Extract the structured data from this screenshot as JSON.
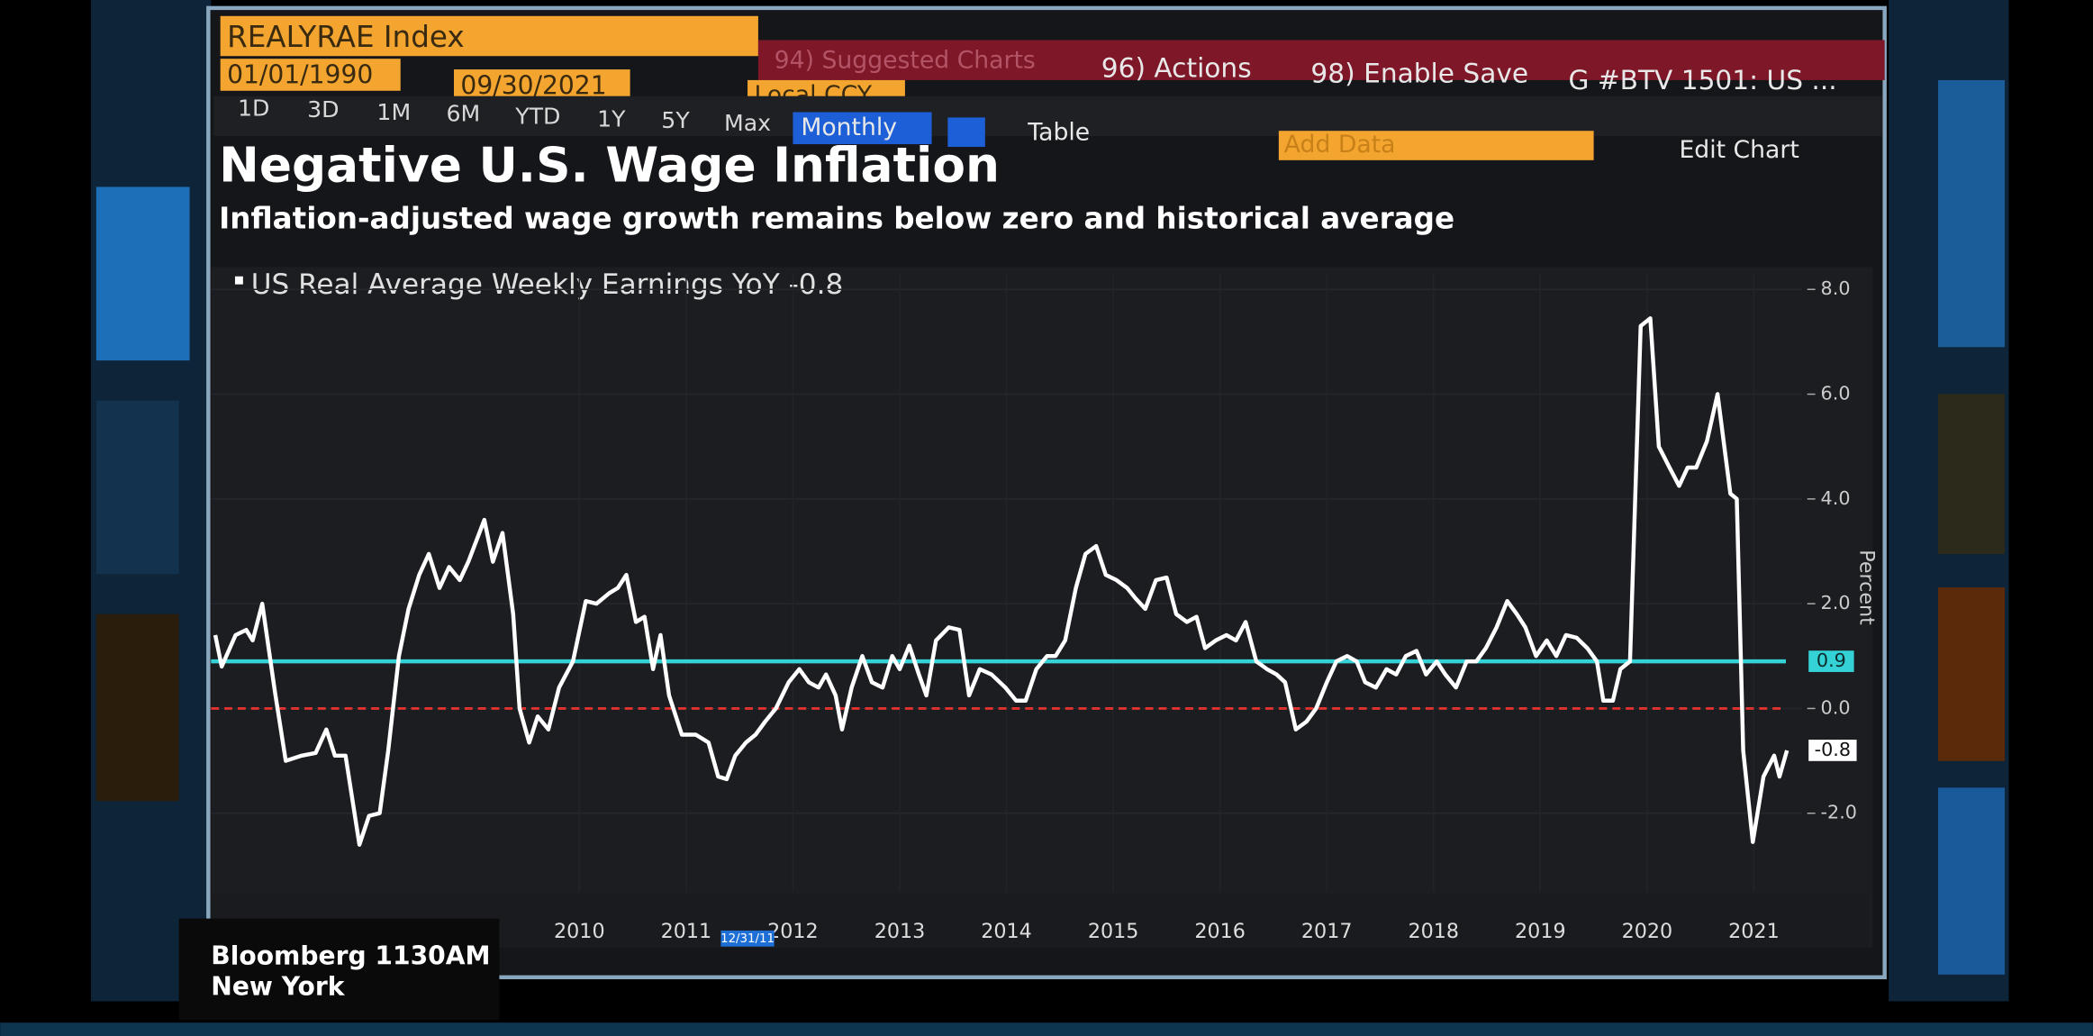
{
  "ui": {
    "security": "REALYRAE Index",
    "start_date": "01/01/1990",
    "end_date": "09/30/2021",
    "currency": "Local CCY",
    "menu": [
      "94) Suggested Charts",
      "96) Actions",
      "98) Enable Save",
      "G #BTV 1501: US ..."
    ],
    "periods": [
      "1D",
      "3D",
      "1M",
      "6M",
      "YTD",
      "1Y",
      "5Y",
      "Max"
    ],
    "frequency": "Monthly",
    "table_button": "Table",
    "add_data": "Add Data",
    "edit_chart": "Edit Chart",
    "crosshair_date": "12/31/11",
    "broadcast": {
      "brand": "Bloomberg 1130AM",
      "city": "New York"
    }
  },
  "chart_data": {
    "type": "line",
    "title": "Negative U.S. Wage Inflation",
    "subtitle": "Inflation-adjusted wage growth remains below zero and historical average",
    "y_label": "Percent",
    "x": [
      2007.09,
      2007.15,
      2007.28,
      2007.38,
      2007.44,
      2007.53,
      2007.65,
      2007.75,
      2007.9,
      2008.03,
      2008.13,
      2008.21,
      2008.31,
      2008.44,
      2008.53,
      2008.63,
      2008.71,
      2008.81,
      2008.9,
      2009.0,
      2009.09,
      2009.19,
      2009.28,
      2009.38,
      2009.46,
      2009.61,
      2009.69,
      2009.78,
      2009.88,
      2009.94,
      2010.03,
      2010.11,
      2010.21,
      2010.31,
      2010.44,
      2010.56,
      2010.66,
      2010.78,
      2010.86,
      2010.94,
      2011.03,
      2011.11,
      2011.19,
      2011.26,
      2011.34,
      2011.46,
      2011.59,
      2011.71,
      2011.8,
      2011.88,
      2011.96,
      2012.06,
      2012.15,
      2012.24,
      2012.34,
      2012.46,
      2012.56,
      2012.65,
      2012.74,
      2012.81,
      2012.9,
      2012.96,
      2013.05,
      2013.15,
      2013.24,
      2013.34,
      2013.43,
      2013.5,
      2013.59,
      2013.68,
      2013.75,
      2013.84,
      2013.96,
      2014.06,
      2014.15,
      2014.25,
      2014.36,
      2014.49,
      2014.59,
      2014.68,
      2014.78,
      2014.88,
      2014.96,
      2015.05,
      2015.15,
      2015.24,
      2015.34,
      2015.43,
      2015.53,
      2015.63,
      2015.71,
      2015.8,
      2015.9,
      2016.0,
      2016.09,
      2016.19,
      2016.28,
      2016.36,
      2016.46,
      2016.56,
      2016.65,
      2016.74,
      2016.84,
      2016.94,
      2017.03,
      2017.11,
      2017.21,
      2017.31,
      2017.4,
      2017.5,
      2017.59,
      2017.69,
      2017.78,
      2017.86,
      2017.96,
      2018.06,
      2018.15,
      2018.24,
      2018.34,
      2018.43,
      2018.53,
      2018.61,
      2018.71,
      2018.81,
      2018.9,
      2018.99,
      2019.09,
      2019.19,
      2019.28,
      2019.36,
      2019.46,
      2019.56,
      2019.65,
      2019.74,
      2019.84,
      2019.94,
      2020.03,
      2020.09,
      2020.18,
      2020.25,
      2020.34,
      2020.44,
      2020.53,
      2020.61,
      2020.71,
      2020.8,
      2020.88,
      2020.96,
      2021.06,
      2021.16,
      2021.28,
      2021.34,
      2021.4,
      2021.49,
      2021.59,
      2021.69,
      2021.74,
      2021.81
    ],
    "series": [
      {
        "name": "US Real Average Weekly Earnings YoY -0.8",
        "color": "#ffffff",
        "values": [
          1.4,
          0.8,
          1.4,
          1.5,
          1.3,
          2.0,
          0.3,
          -1.0,
          -0.9,
          -0.85,
          -0.4,
          -0.9,
          -0.9,
          -2.6,
          -2.05,
          -2.0,
          -0.8,
          1.0,
          1.9,
          2.55,
          2.95,
          2.3,
          2.7,
          2.45,
          2.8,
          3.6,
          2.8,
          3.35,
          1.8,
          0.0,
          -0.65,
          -0.15,
          -0.4,
          0.4,
          0.9,
          2.05,
          2.0,
          2.2,
          2.3,
          2.55,
          1.65,
          1.75,
          0.75,
          1.4,
          0.25,
          -0.5,
          -0.5,
          -0.65,
          -1.3,
          -1.35,
          -0.9,
          -0.65,
          -0.5,
          -0.25,
          0.0,
          0.5,
          0.75,
          0.5,
          0.4,
          0.65,
          0.25,
          -0.4,
          0.4,
          1.0,
          0.5,
          0.4,
          1.0,
          0.75,
          1.2,
          0.65,
          0.25,
          1.3,
          1.55,
          1.5,
          0.25,
          0.75,
          0.65,
          0.4,
          0.15,
          0.15,
          0.75,
          1.0,
          1.0,
          1.3,
          2.3,
          2.95,
          3.1,
          2.55,
          2.45,
          2.3,
          2.1,
          1.9,
          2.45,
          2.5,
          1.8,
          1.65,
          1.75,
          1.15,
          1.3,
          1.4,
          1.3,
          1.65,
          0.9,
          0.75,
          0.65,
          0.5,
          -0.4,
          -0.25,
          0.0,
          0.5,
          0.9,
          1.0,
          0.9,
          0.5,
          0.4,
          0.75,
          0.65,
          1.0,
          1.1,
          0.65,
          0.9,
          0.65,
          0.4,
          0.9,
          0.9,
          1.15,
          1.55,
          2.05,
          1.8,
          1.55,
          1.0,
          1.3,
          1.0,
          1.4,
          1.35,
          1.15,
          0.9,
          0.15,
          0.15,
          0.75,
          0.9,
          7.3,
          7.45,
          5.0,
          4.6,
          4.25,
          4.6,
          4.6,
          5.1,
          6.0,
          4.1,
          4.0,
          -0.8,
          -2.55,
          -1.3,
          -0.9,
          -1.3,
          -0.8
        ]
      }
    ],
    "last_value": {
      "value": -0.8,
      "label": "-0.8"
    },
    "reference_lines": [
      {
        "value": 0.9,
        "label": "0.9",
        "color": "#34d2d6"
      },
      {
        "value": 0,
        "color": "#e0322e",
        "dashed": true
      }
    ],
    "xlim": [
      2007.05,
      2021.95
    ],
    "xticks": [
      {
        "value": 2010.5,
        "label": "2010"
      },
      {
        "value": 2011.5,
        "label": "2011"
      },
      {
        "value": 2012.5,
        "label": "2012"
      },
      {
        "value": 2013.5,
        "label": "2013"
      },
      {
        "value": 2014.5,
        "label": "2014"
      },
      {
        "value": 2015.5,
        "label": "2015"
      },
      {
        "value": 2016.5,
        "label": "2016"
      },
      {
        "value": 2017.5,
        "label": "2017"
      },
      {
        "value": 2018.5,
        "label": "2018"
      },
      {
        "value": 2019.5,
        "label": "2019"
      },
      {
        "value": 2020.5,
        "label": "2020"
      },
      {
        "value": 2021.5,
        "label": "2021"
      }
    ],
    "ylim": [
      -3.5,
      8.3
    ],
    "yticks": [
      {
        "value": -2,
        "label": "-2.0"
      },
      {
        "value": 0,
        "label": "0.0"
      },
      {
        "value": 2,
        "label": "2.0"
      },
      {
        "value": 4,
        "label": "4.0"
      },
      {
        "value": 6,
        "label": "6.0"
      },
      {
        "value": 8,
        "label": "8.0"
      }
    ],
    "grid": true
  }
}
